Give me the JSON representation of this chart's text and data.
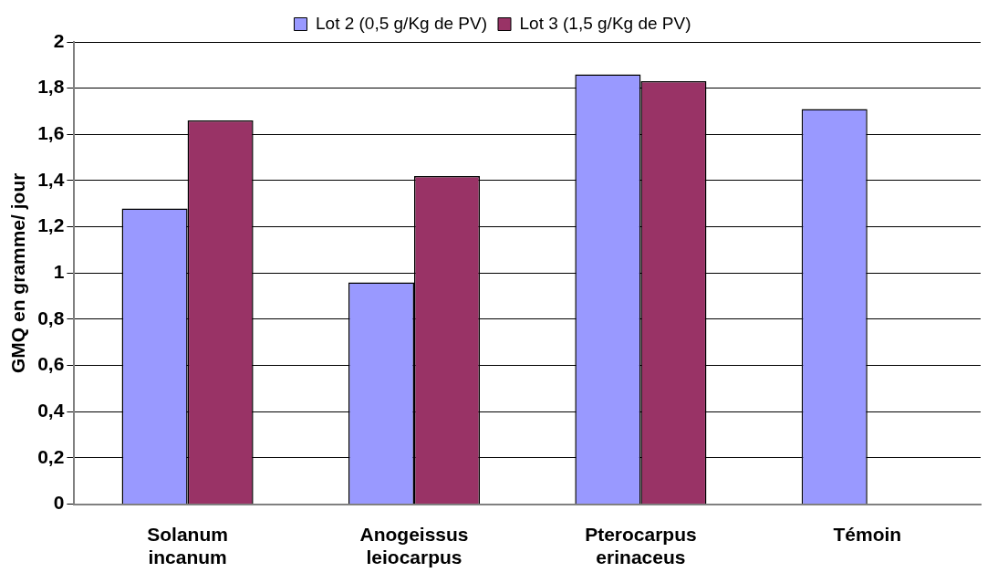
{
  "chart_data": {
    "type": "bar",
    "ylabel": "GMQ en gramme/ jour",
    "categories": [
      "Solanum incanum",
      "Anogeissus leiocarpus",
      "Pterocarpus erinaceus",
      "Témoin"
    ],
    "series": [
      {
        "name": "Lot 2 (0,5 g/Kg de PV)",
        "color": "#9999ff",
        "values": [
          1.28,
          0.96,
          1.86,
          1.71
        ]
      },
      {
        "name": "Lot 3 (1,5 g/Kg de PV)",
        "color": "#993366",
        "values": [
          1.66,
          1.42,
          1.83,
          null
        ]
      }
    ],
    "ylim": [
      0,
      2
    ],
    "yticks": [
      0,
      {
        "value": 0.2,
        "label": "0,2"
      },
      {
        "value": 0.4,
        "label": "0,4"
      },
      {
        "value": 0.6,
        "label": "0,6"
      },
      {
        "value": 0.8,
        "label": "0,8"
      },
      1,
      {
        "value": 1.2,
        "label": "1,2"
      },
      {
        "value": 1.4,
        "label": "1,4"
      },
      {
        "value": 1.6,
        "label": "1,6"
      },
      {
        "value": 1.8,
        "label": "1,8"
      },
      2
    ],
    "grid": "y",
    "legend": "top"
  }
}
